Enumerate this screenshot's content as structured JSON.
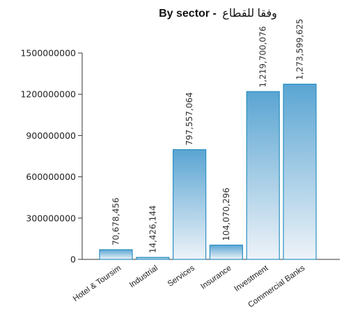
{
  "chart_data": {
    "type": "bar",
    "title": "By sector - وفقا للقطاع",
    "title_en": "By sector -",
    "title_ar": "وفقا للقطاع",
    "categories": [
      "Hotel & Toursim",
      "Industrial",
      "Services",
      "Insurance",
      "Investment",
      "Commercial Banks"
    ],
    "values": [
      70678456,
      14426144,
      797557064,
      104070296,
      1219700076,
      1273599625
    ],
    "data_labels": [
      "70,678,456",
      "14,426,144",
      "797,557,064",
      "104,070,296",
      "1,219,700,076",
      "1,273,599,625"
    ],
    "yticks": [
      0,
      300000000,
      600000000,
      900000000,
      1200000000,
      1500000000
    ],
    "ytick_labels": [
      "0",
      "300000000",
      "600000000",
      "900000000",
      "1200000000",
      "1500000000"
    ],
    "ylim": [
      0,
      1500000000
    ],
    "xlabel": "",
    "ylabel": "",
    "grid": false,
    "bar_color_top": "#5aa5d3",
    "bar_color_bottom": "#eef3f8",
    "bar_stroke": "#2a8fc0"
  }
}
